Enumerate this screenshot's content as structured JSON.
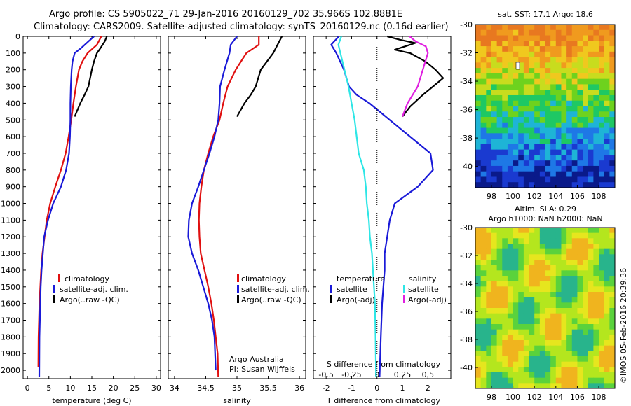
{
  "header": {
    "line1": "Argo profile: CS 5905022_71 29-Jan-2016 20160129_702 35.966S 102.8881E",
    "line2": "Climatology: CARS2009. Satellite-adjusted climatology: synTS_20160129.nc (0.16d earlier)"
  },
  "colors": {
    "climatology": "#e01010",
    "satellite": "#1a1ad8",
    "argo": "#000000",
    "salinity_satellite": "#2ee6e6",
    "salinity_argo": "#e020e0"
  },
  "depth_ticks": [
    "0",
    "100",
    "200",
    "300",
    "400",
    "500",
    "600",
    "700",
    "800",
    "900",
    "1000",
    "1100",
    "1200",
    "1300",
    "1400",
    "1500",
    "1600",
    "1700",
    "1800",
    "1900",
    "2000"
  ],
  "panels": {
    "temperature": {
      "xlabel": "temperature (deg C)",
      "xticks": [
        "0",
        "5",
        "10",
        "15",
        "20",
        "25",
        "30"
      ],
      "legend": [
        "climatology",
        "satellite-adj. clim.",
        "Argo(..raw -QC)"
      ]
    },
    "salinity": {
      "xlabel": "salinity",
      "xticks": [
        "34",
        "34.5",
        "35",
        "35.5",
        "36"
      ],
      "legend": [
        "climatology",
        "satellite-adj. clim.",
        "Argo(..raw -QC)"
      ],
      "note1": "Argo Australia",
      "note2": "PI: Susan Wijffels"
    },
    "difference": {
      "xlabel": "T difference from climatology",
      "xticks": [
        "-2",
        "-1",
        "0",
        "1",
        "2"
      ],
      "top_label": "S difference from climatology",
      "top_ticks": [
        "-0.5",
        "-0.25",
        "0",
        "0.25",
        "0.5"
      ],
      "legend_temp_title": "temperature",
      "legend_sal_title": "salinity",
      "legend_temp": [
        "satellite",
        "Argo(-adj)"
      ],
      "legend_sal": [
        "satellite",
        "Argo(-adj)"
      ]
    }
  },
  "maps": {
    "sst_title": "sat. SST: 17.1 Argo: 18.6",
    "sla_title1": "Altim. SLA: 0.29",
    "sla_title2": "Argo h1000: NaN h2000: NaN",
    "lat_ticks": [
      "-30",
      "-32",
      "-34",
      "-36",
      "-38",
      "-40"
    ],
    "lon_ticks": [
      "98",
      "100",
      "102",
      "104",
      "106",
      "108"
    ]
  },
  "timestamp": "©IMOS 05-Feb-2016 20:39:36",
  "chart_data": [
    {
      "type": "line",
      "title": "",
      "xlabel": "temperature (deg C)",
      "ylabel": "",
      "xlim": [
        -1,
        31
      ],
      "ylim": [
        2050,
        0
      ],
      "series": [
        {
          "name": "climatology",
          "x": [
            17.2,
            16.2,
            14.0,
            12.8,
            12.0,
            11.3,
            10.7,
            10.2,
            9.6,
            8.9,
            7.8,
            6.5,
            5.3,
            4.5,
            4.0,
            3.5,
            3.2,
            3.0,
            2.8,
            2.7,
            2.6,
            2.55
          ],
          "y": [
            0,
            50,
            100,
            150,
            200,
            300,
            400,
            500,
            600,
            700,
            800,
            900,
            1000,
            1100,
            1200,
            1300,
            1400,
            1500,
            1600,
            1700,
            1800,
            1980
          ]
        },
        {
          "name": "satellite-adj. clim.",
          "x": [
            15.5,
            12.5,
            11.0,
            10.5,
            10.3,
            10.1,
            10.0,
            10.0,
            9.9,
            9.7,
            9.0,
            7.8,
            6.0,
            4.8,
            3.9,
            3.6,
            3.3,
            3.1,
            3.0,
            2.9,
            2.8,
            2.75
          ],
          "y": [
            0,
            70,
            100,
            150,
            200,
            300,
            400,
            500,
            600,
            700,
            800,
            900,
            1000,
            1100,
            1200,
            1300,
            1400,
            1500,
            1600,
            1700,
            1800,
            2040
          ]
        },
        {
          "name": "Argo(..raw -QC)",
          "x": [
            18.5,
            18.0,
            17.0,
            16.2,
            15.5,
            15.0,
            14.2,
            13.3,
            12.3,
            11.0
          ],
          "y": [
            0,
            30,
            70,
            100,
            150,
            200,
            300,
            350,
            400,
            480
          ]
        }
      ]
    },
    {
      "type": "line",
      "title": "",
      "xlabel": "salinity",
      "ylabel": "",
      "xlim": [
        33.9,
        36.1
      ],
      "ylim": [
        2050,
        0
      ],
      "series": [
        {
          "name": "climatology",
          "x": [
            35.35,
            35.35,
            35.15,
            34.98,
            34.85,
            34.78,
            34.72,
            34.62,
            34.54,
            34.47,
            34.43,
            34.4,
            34.39,
            34.4,
            34.42,
            34.48,
            34.54,
            34.59,
            34.63,
            34.66,
            34.69,
            34.7
          ],
          "y": [
            0,
            50,
            100,
            200,
            300,
            400,
            500,
            600,
            700,
            800,
            900,
            1000,
            1100,
            1200,
            1300,
            1400,
            1500,
            1600,
            1700,
            1800,
            1900,
            2040
          ]
        },
        {
          "name": "satellite-adj. clim.",
          "x": [
            35.0,
            34.9,
            34.88,
            34.8,
            34.73,
            34.72,
            34.7,
            34.64,
            34.56,
            34.47,
            34.38,
            34.28,
            34.23,
            34.22,
            34.28,
            34.38,
            34.46,
            34.54,
            34.6,
            34.64,
            34.66
          ],
          "y": [
            0,
            50,
            100,
            200,
            300,
            400,
            500,
            600,
            700,
            800,
            900,
            1000,
            1100,
            1200,
            1300,
            1400,
            1500,
            1600,
            1700,
            1800,
            2000
          ]
        },
        {
          "name": "Argo(..raw -QC)",
          "x": [
            35.72,
            35.65,
            35.58,
            35.48,
            35.38,
            35.3,
            35.22,
            35.12,
            35.0
          ],
          "y": [
            0,
            50,
            100,
            150,
            200,
            300,
            350,
            400,
            480
          ]
        }
      ]
    },
    {
      "type": "line",
      "title": "",
      "xlabel": "T difference from climatology",
      "ylabel": "",
      "xlim": [
        -2.5,
        2.9
      ],
      "ylim": [
        2050,
        0
      ],
      "series": [
        {
          "name": "satellite",
          "x": [
            -1.5,
            -1.8,
            -1.6,
            -1.3,
            -1.1,
            -0.8,
            -0.3,
            0.5,
            1.3,
            2.1,
            2.2,
            1.6,
            0.7,
            0.5,
            0.4,
            0.3,
            0.3,
            0.25,
            0.2,
            0.15,
            0.1
          ],
          "y": [
            0,
            50,
            100,
            200,
            300,
            350,
            400,
            500,
            600,
            700,
            800,
            900,
            1000,
            1100,
            1200,
            1300,
            1400,
            1500,
            1600,
            1800,
            2040
          ]
        },
        {
          "name": "Argo(-adj)",
          "x": [
            0.4,
            0.9,
            1.5,
            1.1,
            0.7,
            1.3,
            1.9,
            2.3,
            2.6,
            2.2,
            1.8,
            1.3,
            1.0
          ],
          "y": [
            0,
            20,
            40,
            60,
            80,
            100,
            150,
            200,
            250,
            300,
            350,
            420,
            480
          ]
        }
      ]
    },
    {
      "type": "line",
      "title": "",
      "xlabel": "S difference from climatology",
      "ylabel": "",
      "xlim": [
        -0.625,
        0.725
      ],
      "ylim": [
        2050,
        0
      ],
      "series": [
        {
          "name": "satellite",
          "x": [
            -0.35,
            -0.38,
            -0.36,
            -0.32,
            -0.28,
            -0.25,
            -0.22,
            -0.2,
            -0.18,
            -0.13,
            -0.11,
            -0.1,
            -0.08,
            -0.07,
            -0.05,
            -0.04,
            -0.03,
            -0.02,
            -0.015,
            -0.01
          ],
          "y": [
            0,
            50,
            100,
            200,
            300,
            400,
            500,
            600,
            700,
            800,
            900,
            1000,
            1100,
            1200,
            1300,
            1400,
            1500,
            1600,
            1800,
            2040
          ]
        },
        {
          "name": "Argo(-adj)",
          "x": [
            0.32,
            0.38,
            0.48,
            0.5,
            0.45,
            0.4,
            0.3,
            0.25
          ],
          "y": [
            0,
            30,
            60,
            100,
            200,
            300,
            400,
            480
          ]
        }
      ]
    },
    {
      "type": "heatmap",
      "title": "sat. SST: 17.1 Argo: 18.6",
      "xlabel": "",
      "ylabel": "",
      "xlim": [
        96.5,
        109.5
      ],
      "ylim": [
        -41.5,
        -30
      ],
      "z_by_latitude": [
        [
          -30,
          21
        ],
        [
          -32,
          19.5
        ],
        [
          -34,
          18.5
        ],
        [
          -36,
          16.5
        ],
        [
          -38,
          15
        ],
        [
          -40,
          13
        ],
        [
          -41.5,
          12.5
        ]
      ]
    },
    {
      "type": "heatmap",
      "title": "Altim. SLA: 0.29",
      "xlabel": "",
      "ylabel": "",
      "xlim": [
        96.5,
        109.5
      ],
      "ylim": [
        -41.5,
        -30
      ]
    }
  ]
}
